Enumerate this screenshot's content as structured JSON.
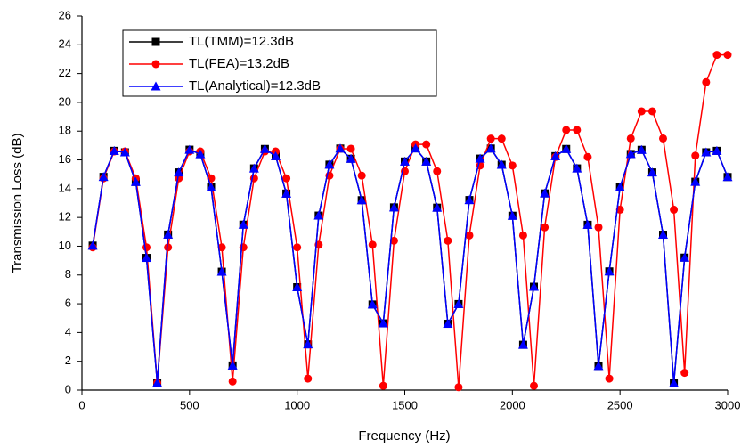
{
  "chart_data": {
    "type": "line",
    "xlabel": "Frequency (Hz)",
    "ylabel": "Transmission Loss (dB)",
    "x": [
      50,
      100,
      150,
      200,
      250,
      300,
      350,
      400,
      450,
      500,
      550,
      600,
      650,
      700,
      750,
      800,
      850,
      900,
      950,
      1000,
      1050,
      1100,
      1150,
      1200,
      1250,
      1300,
      1350,
      1400,
      1450,
      1500,
      1550,
      1600,
      1650,
      1700,
      1750,
      1800,
      1850,
      1900,
      1950,
      2000,
      2050,
      2100,
      2150,
      2200,
      2250,
      2300,
      2350,
      2400,
      2450,
      2500,
      2550,
      2600,
      2650,
      2700,
      2750,
      2800,
      2850,
      2900,
      2950,
      3000
    ],
    "series": [
      {
        "name": "TL(TMM)=12.3dB",
        "color": "#000000",
        "marker": "square",
        "values": [
          10.04,
          14.82,
          16.63,
          16.53,
          14.47,
          9.19,
          0.5,
          10.81,
          15.13,
          16.71,
          16.4,
          14.09,
          8.23,
          1.71,
          11.5,
          15.41,
          16.76,
          16.26,
          13.66,
          7.15,
          3.18,
          12.13,
          15.67,
          16.79,
          16.08,
          13.2,
          5.95,
          4.64,
          12.7,
          15.89,
          16.8,
          15.89,
          12.68,
          4.61,
          5.98,
          13.21,
          16.09,
          16.79,
          15.66,
          12.12,
          3.15,
          7.18,
          13.67,
          16.26,
          16.76,
          15.41,
          11.49,
          1.68,
          8.25,
          14.1,
          16.41,
          16.7,
          15.13,
          10.8,
          0.48,
          9.21,
          14.48,
          16.53,
          16.63,
          14.81
        ]
      },
      {
        "name": "TL(FEA)=13.2dB",
        "color": "#ff0000",
        "marker": "circle",
        "values": [
          9.92,
          14.72,
          16.59,
          16.59,
          14.72,
          9.92,
          0.5,
          9.92,
          14.72,
          16.59,
          16.59,
          14.72,
          9.92,
          0.6,
          9.92,
          14.72,
          16.59,
          16.59,
          14.72,
          9.92,
          0.8,
          10.1,
          14.91,
          16.78,
          16.78,
          14.91,
          10.1,
          0.3,
          10.38,
          15.21,
          17.08,
          17.08,
          15.21,
          10.38,
          0.2,
          10.75,
          15.61,
          17.48,
          17.48,
          15.61,
          10.75,
          0.3,
          11.31,
          16.2,
          18.08,
          18.08,
          16.2,
          11.31,
          0.8,
          12.54,
          17.49,
          19.38,
          19.38,
          17.49,
          12.54,
          1.2,
          16.3,
          21.4,
          23.3,
          23.3
        ]
      },
      {
        "name": "TL(Analytical)=12.3dB",
        "color": "#0000ff",
        "marker": "triangle",
        "values": [
          10.04,
          14.82,
          16.63,
          16.53,
          14.47,
          9.19,
          0.5,
          10.81,
          15.13,
          16.71,
          16.4,
          14.09,
          8.23,
          1.71,
          11.5,
          15.41,
          16.76,
          16.26,
          13.66,
          7.15,
          3.18,
          12.13,
          15.67,
          16.79,
          16.08,
          13.2,
          5.95,
          4.64,
          12.7,
          15.89,
          16.8,
          15.89,
          12.68,
          4.61,
          5.98,
          13.21,
          16.09,
          16.79,
          15.66,
          12.12,
          3.15,
          7.18,
          13.67,
          16.26,
          16.76,
          15.41,
          11.49,
          1.68,
          8.25,
          14.1,
          16.41,
          16.7,
          15.13,
          10.8,
          0.48,
          9.21,
          14.48,
          16.53,
          16.63,
          14.81
        ]
      }
    ],
    "xlim": [
      0,
      3000
    ],
    "xticks": [
      0,
      500,
      1000,
      1500,
      2000,
      2500,
      3000
    ],
    "ylim": [
      0,
      26
    ],
    "yticks": [
      0,
      2,
      4,
      6,
      8,
      10,
      12,
      14,
      16,
      18,
      20,
      22,
      24,
      26
    ],
    "legend": "upper-left"
  }
}
